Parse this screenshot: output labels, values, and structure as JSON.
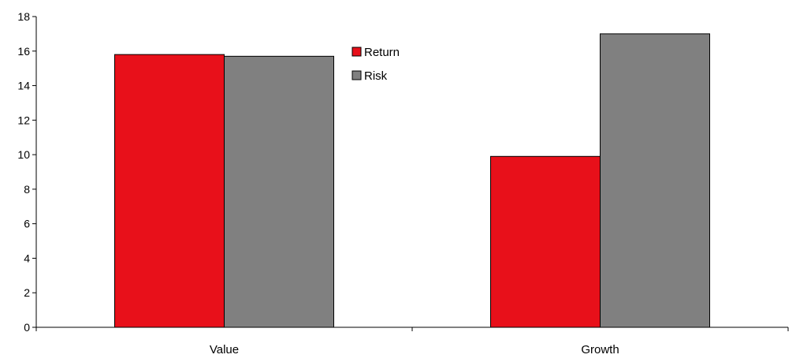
{
  "chart_data": {
    "type": "bar",
    "categories": [
      "Value",
      "Growth"
    ],
    "series": [
      {
        "name": "Return",
        "color": "#e8101a",
        "values": [
          15.8,
          9.9
        ]
      },
      {
        "name": "Risk",
        "color": "#808080",
        "values": [
          15.7,
          17.0
        ]
      }
    ],
    "ylim": [
      0,
      18
    ],
    "yticks": [
      "0",
      "2",
      "4",
      "6",
      "8",
      "10",
      "12",
      "14",
      "16",
      "18"
    ],
    "grid": false,
    "legend_position": "top-center",
    "title": "",
    "xlabel": "",
    "ylabel": ""
  }
}
